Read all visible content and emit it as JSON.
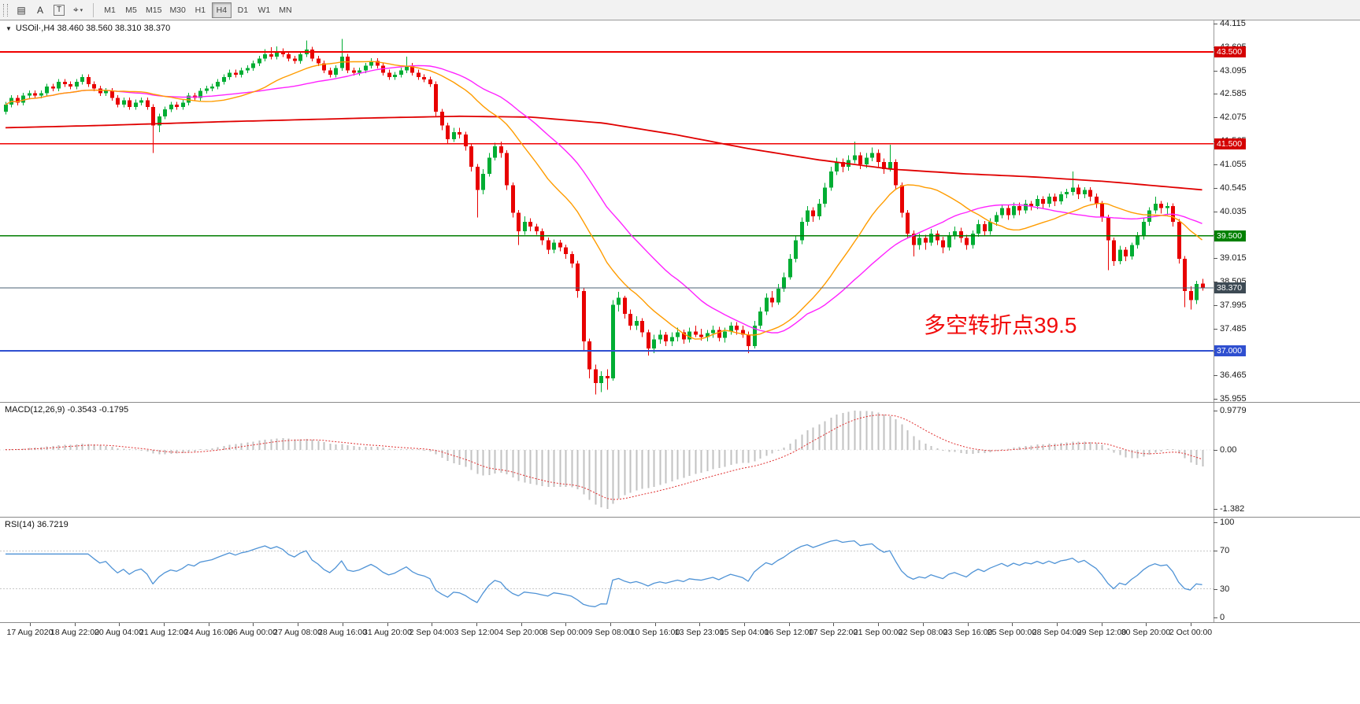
{
  "toolbar": {
    "icons": [
      {
        "name": "charts-list-icon",
        "glyph": "▤",
        "boxed": false
      },
      {
        "name": "cursor-tool-icon",
        "glyph": "A",
        "boxed": false
      },
      {
        "name": "text-tool-icon",
        "glyph": "T",
        "boxed": true
      },
      {
        "name": "crosshair-tool-icon",
        "glyph": "⌖",
        "boxed": false,
        "caret": true
      }
    ],
    "timeframes": [
      {
        "label": "M1",
        "active": false
      },
      {
        "label": "M5",
        "active": false
      },
      {
        "label": "M15",
        "active": false
      },
      {
        "label": "M30",
        "active": false
      },
      {
        "label": "H1",
        "active": false
      },
      {
        "label": "H4",
        "active": true
      },
      {
        "label": "D1",
        "active": false
      },
      {
        "label": "W1",
        "active": false
      },
      {
        "label": "MN",
        "active": false
      }
    ]
  },
  "chart": {
    "title": "USOil·,H4 38.460 38.560 38.310 38.370",
    "annotation": "多空转折点39.5",
    "up_color": "#00ad33",
    "down_color": "#e80000",
    "ma_fast_color": "#ff9c00",
    "ma_mid_color": "#ff22ff",
    "ma_slow_color": "#e00000",
    "ma_fast_period": 20,
    "ma_mid_period": 34,
    "price_axis": {
      "max": 44.115,
      "min": 35.955,
      "labels": [
        "44.115",
        "43.605",
        "43.095",
        "42.585",
        "42.075",
        "41.565",
        "41.055",
        "40.545",
        "40.035",
        "39.525",
        "39.015",
        "38.505",
        "37.995",
        "37.485",
        "36.975",
        "36.465",
        "35.955"
      ]
    },
    "hlines": [
      {
        "price": 43.5,
        "color": "#f00000",
        "width": 1.6,
        "label": "43.500",
        "tag": "#d40000"
      },
      {
        "price": 41.5,
        "color": "#f00000",
        "width": 1.6,
        "label": "41.500",
        "tag": "#d40000"
      },
      {
        "price": 39.5,
        "color": "#007d00",
        "width": 1.6,
        "label": "39.500",
        "tag": "#008000"
      },
      {
        "price": 37.0,
        "color": "#2f4fd0",
        "width": 1.8,
        "label": "37.000",
        "tag": "#2f4fd0"
      }
    ],
    "price_line": {
      "price": 38.37,
      "color": "#4a6076",
      "label": "38.370",
      "tag": "#3d4a54"
    },
    "slow_ma_points": [
      [
        0,
        41.85
      ],
      [
        0.08,
        41.9
      ],
      [
        0.18,
        41.98
      ],
      [
        0.3,
        42.06
      ],
      [
        0.38,
        42.1
      ],
      [
        0.44,
        42.08
      ],
      [
        0.5,
        41.95
      ],
      [
        0.56,
        41.7
      ],
      [
        0.62,
        41.4
      ],
      [
        0.68,
        41.15
      ],
      [
        0.74,
        40.95
      ],
      [
        0.8,
        40.85
      ],
      [
        0.86,
        40.78
      ],
      [
        0.92,
        40.68
      ],
      [
        1,
        40.5
      ]
    ],
    "candles": [
      [
        42.2,
        42.41,
        42.14,
        42.35
      ],
      [
        42.35,
        42.56,
        42.29,
        42.5
      ],
      [
        42.5,
        42.56,
        42.34,
        42.4
      ],
      [
        42.4,
        42.61,
        42.34,
        42.55
      ],
      [
        42.55,
        42.66,
        42.49,
        42.6
      ],
      [
        42.6,
        42.66,
        42.49,
        42.55
      ],
      [
        42.55,
        42.66,
        42.49,
        42.6
      ],
      [
        42.6,
        42.81,
        42.54,
        42.75
      ],
      [
        42.75,
        42.81,
        42.64,
        42.7
      ],
      [
        42.7,
        42.91,
        42.64,
        42.85
      ],
      [
        42.85,
        42.91,
        42.74,
        42.8
      ],
      [
        42.8,
        42.86,
        42.69,
        42.75
      ],
      [
        42.75,
        42.91,
        42.69,
        42.85
      ],
      [
        42.85,
        43.01,
        42.79,
        42.95
      ],
      [
        42.95,
        43.01,
        42.74,
        42.8
      ],
      [
        42.8,
        42.86,
        42.64,
        42.7
      ],
      [
        42.7,
        42.76,
        42.54,
        42.6
      ],
      [
        42.6,
        42.71,
        42.54,
        42.65
      ],
      [
        42.65,
        42.71,
        42.44,
        42.5
      ],
      [
        42.5,
        42.56,
        42.29,
        42.35
      ],
      [
        42.35,
        42.51,
        42.29,
        42.45
      ],
      [
        42.45,
        42.51,
        42.24,
        42.3
      ],
      [
        42.3,
        42.46,
        42.24,
        42.4
      ],
      [
        42.4,
        42.51,
        42.34,
        42.45
      ],
      [
        42.45,
        42.51,
        42.24,
        42.3
      ],
      [
        42.3,
        42.36,
        41.3,
        41.9
      ],
      [
        41.9,
        42.16,
        41.75,
        42.1
      ],
      [
        42.1,
        42.31,
        42.04,
        42.25
      ],
      [
        42.25,
        42.41,
        42.19,
        42.35
      ],
      [
        42.35,
        42.41,
        42.24,
        42.3
      ],
      [
        42.3,
        42.46,
        42.24,
        42.4
      ],
      [
        42.4,
        42.61,
        42.34,
        42.55
      ],
      [
        42.55,
        42.61,
        42.44,
        42.5
      ],
      [
        42.5,
        42.71,
        42.44,
        42.65
      ],
      [
        42.65,
        42.76,
        42.59,
        42.7
      ],
      [
        42.7,
        42.81,
        42.64,
        42.75
      ],
      [
        42.75,
        42.91,
        42.69,
        42.85
      ],
      [
        42.85,
        43.01,
        42.79,
        42.95
      ],
      [
        42.95,
        43.11,
        42.89,
        43.05
      ],
      [
        43.05,
        43.11,
        42.94,
        43.0
      ],
      [
        43.0,
        43.16,
        42.94,
        43.1
      ],
      [
        43.1,
        43.21,
        43.04,
        43.15
      ],
      [
        43.15,
        43.31,
        43.09,
        43.25
      ],
      [
        43.25,
        43.41,
        43.19,
        43.35
      ],
      [
        43.35,
        43.56,
        43.29,
        43.45
      ],
      [
        43.45,
        43.6,
        43.34,
        43.4
      ],
      [
        43.4,
        43.62,
        43.34,
        43.5
      ],
      [
        43.5,
        43.58,
        43.39,
        43.45
      ],
      [
        43.45,
        43.51,
        43.29,
        43.35
      ],
      [
        43.35,
        43.41,
        43.24,
        43.3
      ],
      [
        43.3,
        43.51,
        43.24,
        43.45
      ],
      [
        43.45,
        43.75,
        43.39,
        43.55
      ],
      [
        43.55,
        43.61,
        43.29,
        43.35
      ],
      [
        43.35,
        43.41,
        43.19,
        43.25
      ],
      [
        43.25,
        43.31,
        43.04,
        43.1
      ],
      [
        43.1,
        43.16,
        42.94,
        43.0
      ],
      [
        43.0,
        43.21,
        42.94,
        43.15
      ],
      [
        43.15,
        43.78,
        43.09,
        43.4
      ],
      [
        43.4,
        43.46,
        43.04,
        43.1
      ],
      [
        43.1,
        43.16,
        42.99,
        43.05
      ],
      [
        43.05,
        43.16,
        42.99,
        43.1
      ],
      [
        43.1,
        43.26,
        43.04,
        43.2
      ],
      [
        43.2,
        43.36,
        43.14,
        43.3
      ],
      [
        43.3,
        43.36,
        43.14,
        43.2
      ],
      [
        43.2,
        43.26,
        42.99,
        43.05
      ],
      [
        43.05,
        43.11,
        42.89,
        42.95
      ],
      [
        42.95,
        43.06,
        42.89,
        43.0
      ],
      [
        43.0,
        43.16,
        42.94,
        43.1
      ],
      [
        43.1,
        43.4,
        43.04,
        43.2
      ],
      [
        43.2,
        43.26,
        42.99,
        43.05
      ],
      [
        43.05,
        43.11,
        42.89,
        42.95
      ],
      [
        42.95,
        43.01,
        42.84,
        42.9
      ],
      [
        42.9,
        42.96,
        42.74,
        42.8
      ],
      [
        42.8,
        42.86,
        42.1,
        42.2
      ],
      [
        42.2,
        42.26,
        41.8,
        41.9
      ],
      [
        41.9,
        41.96,
        41.5,
        41.6
      ],
      [
        41.6,
        41.85,
        41.54,
        41.75
      ],
      [
        41.75,
        41.85,
        41.62,
        41.7
      ],
      [
        41.7,
        41.76,
        41.35,
        41.45
      ],
      [
        41.45,
        41.51,
        40.9,
        41.0
      ],
      [
        41.0,
        41.06,
        39.9,
        40.5
      ],
      [
        40.5,
        40.95,
        40.4,
        40.85
      ],
      [
        40.85,
        41.3,
        40.79,
        41.2
      ],
      [
        41.2,
        41.52,
        41.14,
        41.45
      ],
      [
        41.45,
        41.55,
        41.2,
        41.3
      ],
      [
        41.3,
        41.36,
        40.5,
        40.6
      ],
      [
        40.6,
        40.66,
        39.9,
        40.0
      ],
      [
        40.0,
        40.06,
        39.3,
        39.6
      ],
      [
        39.6,
        39.92,
        39.52,
        39.8
      ],
      [
        39.8,
        39.88,
        39.6,
        39.7
      ],
      [
        39.7,
        39.76,
        39.52,
        39.6
      ],
      [
        39.6,
        39.66,
        39.3,
        39.4
      ],
      [
        39.4,
        39.46,
        39.1,
        39.2
      ],
      [
        39.2,
        39.42,
        39.12,
        39.35
      ],
      [
        39.35,
        39.41,
        39.16,
        39.25
      ],
      [
        39.25,
        39.31,
        39.0,
        39.1
      ],
      [
        39.1,
        39.16,
        38.8,
        38.9
      ],
      [
        38.9,
        38.96,
        38.15,
        38.3
      ],
      [
        38.3,
        38.36,
        37.0,
        37.2
      ],
      [
        37.2,
        37.26,
        36.4,
        36.6
      ],
      [
        36.6,
        36.7,
        36.05,
        36.3
      ],
      [
        36.3,
        36.55,
        36.1,
        36.45
      ],
      [
        36.45,
        36.6,
        36.15,
        36.4
      ],
      [
        36.4,
        38.1,
        36.35,
        38.0
      ],
      [
        38.0,
        38.28,
        37.85,
        38.15
      ],
      [
        38.15,
        38.2,
        37.7,
        37.8
      ],
      [
        37.8,
        37.9,
        37.45,
        37.55
      ],
      [
        37.55,
        37.75,
        37.45,
        37.65
      ],
      [
        37.65,
        37.71,
        37.3,
        37.4
      ],
      [
        37.4,
        37.46,
        36.9,
        37.05
      ],
      [
        37.05,
        37.35,
        36.95,
        37.25
      ],
      [
        37.25,
        37.45,
        37.15,
        37.35
      ],
      [
        37.35,
        37.41,
        37.1,
        37.2
      ],
      [
        37.2,
        37.4,
        37.1,
        37.3
      ],
      [
        37.3,
        37.5,
        37.2,
        37.4
      ],
      [
        37.4,
        37.46,
        37.15,
        37.25
      ],
      [
        37.25,
        37.5,
        37.18,
        37.42
      ],
      [
        37.42,
        37.55,
        37.3,
        37.35
      ],
      [
        37.35,
        37.48,
        37.22,
        37.3
      ],
      [
        37.3,
        37.45,
        37.2,
        37.38
      ],
      [
        37.38,
        37.55,
        37.28,
        37.45
      ],
      [
        37.45,
        37.52,
        37.2,
        37.28
      ],
      [
        37.28,
        37.5,
        37.18,
        37.42
      ],
      [
        37.42,
        37.62,
        37.35,
        37.55
      ],
      [
        37.55,
        37.62,
        37.35,
        37.45
      ],
      [
        37.45,
        37.55,
        37.28,
        37.35
      ],
      [
        37.35,
        37.42,
        36.95,
        37.1
      ],
      [
        37.1,
        37.65,
        37.05,
        37.55
      ],
      [
        37.55,
        37.95,
        37.48,
        37.85
      ],
      [
        37.85,
        38.25,
        37.78,
        38.15
      ],
      [
        38.15,
        38.3,
        37.95,
        38.05
      ],
      [
        38.05,
        38.45,
        38.0,
        38.35
      ],
      [
        38.35,
        38.7,
        38.28,
        38.6
      ],
      [
        38.6,
        39.1,
        38.55,
        39.0
      ],
      [
        39.0,
        39.5,
        38.92,
        39.4
      ],
      [
        39.4,
        39.9,
        39.32,
        39.8
      ],
      [
        39.8,
        40.15,
        39.72,
        40.05
      ],
      [
        40.05,
        40.12,
        39.8,
        39.92
      ],
      [
        39.92,
        40.3,
        39.85,
        40.2
      ],
      [
        40.2,
        40.65,
        40.12,
        40.55
      ],
      [
        40.55,
        41.0,
        40.48,
        40.9
      ],
      [
        40.9,
        41.2,
        40.82,
        41.1
      ],
      [
        41.1,
        41.18,
        40.88,
        41.0
      ],
      [
        41.0,
        41.25,
        40.92,
        41.15
      ],
      [
        41.15,
        41.55,
        41.08,
        41.25
      ],
      [
        41.25,
        41.32,
        40.95,
        41.05
      ],
      [
        41.05,
        41.3,
        40.98,
        41.2
      ],
      [
        41.2,
        41.42,
        41.12,
        41.3
      ],
      [
        41.3,
        41.38,
        41.0,
        41.1
      ],
      [
        41.1,
        41.18,
        40.85,
        40.95
      ],
      [
        40.95,
        41.48,
        40.9,
        41.1
      ],
      [
        41.1,
        41.16,
        40.5,
        40.6
      ],
      [
        40.6,
        40.66,
        39.9,
        40.0
      ],
      [
        40.0,
        40.06,
        39.45,
        39.55
      ],
      [
        39.55,
        39.62,
        39.05,
        39.3
      ],
      [
        39.3,
        39.55,
        39.2,
        39.45
      ],
      [
        39.45,
        39.52,
        39.2,
        39.35
      ],
      [
        39.35,
        39.65,
        39.28,
        39.55
      ],
      [
        39.55,
        39.62,
        39.3,
        39.4
      ],
      [
        39.4,
        39.48,
        39.12,
        39.25
      ],
      [
        39.25,
        39.58,
        39.18,
        39.5
      ],
      [
        39.5,
        39.7,
        39.42,
        39.6
      ],
      [
        39.6,
        39.68,
        39.35,
        39.45
      ],
      [
        39.45,
        39.52,
        39.2,
        39.3
      ],
      [
        39.3,
        39.62,
        39.22,
        39.55
      ],
      [
        39.55,
        39.85,
        39.48,
        39.75
      ],
      [
        39.75,
        39.82,
        39.5,
        39.6
      ],
      [
        39.6,
        39.88,
        39.52,
        39.8
      ],
      [
        39.8,
        40.02,
        39.72,
        39.95
      ],
      [
        39.95,
        40.18,
        39.88,
        40.1
      ],
      [
        40.1,
        40.16,
        39.85,
        39.95
      ],
      [
        39.95,
        40.22,
        39.88,
        40.15
      ],
      [
        40.15,
        40.22,
        39.95,
        40.05
      ],
      [
        40.05,
        40.28,
        39.98,
        40.2
      ],
      [
        40.2,
        40.26,
        40.05,
        40.15
      ],
      [
        40.15,
        40.38,
        40.08,
        40.3
      ],
      [
        40.3,
        40.36,
        40.1,
        40.2
      ],
      [
        40.2,
        40.42,
        40.12,
        40.35
      ],
      [
        40.35,
        40.42,
        40.15,
        40.25
      ],
      [
        40.25,
        40.46,
        40.18,
        40.4
      ],
      [
        40.4,
        40.52,
        40.32,
        40.45
      ],
      [
        40.45,
        40.9,
        40.38,
        40.55
      ],
      [
        40.55,
        40.62,
        40.3,
        40.4
      ],
      [
        40.4,
        40.56,
        40.32,
        40.5
      ],
      [
        40.5,
        40.56,
        40.25,
        40.35
      ],
      [
        40.35,
        40.42,
        40.1,
        40.2
      ],
      [
        40.2,
        40.26,
        39.8,
        39.9
      ],
      [
        39.9,
        39.96,
        38.75,
        39.4
      ],
      [
        39.4,
        39.46,
        38.85,
        38.95
      ],
      [
        38.95,
        39.28,
        38.88,
        39.2
      ],
      [
        39.2,
        39.26,
        38.95,
        39.05
      ],
      [
        39.05,
        39.35,
        38.98,
        39.3
      ],
      [
        39.3,
        39.58,
        39.22,
        39.5
      ],
      [
        39.5,
        39.88,
        39.42,
        39.8
      ],
      [
        39.8,
        40.12,
        39.72,
        40.05
      ],
      [
        40.05,
        40.35,
        39.98,
        40.2
      ],
      [
        40.2,
        40.26,
        39.98,
        40.1
      ],
      [
        40.1,
        40.22,
        39.95,
        40.15
      ],
      [
        40.15,
        40.21,
        39.7,
        39.8
      ],
      [
        39.8,
        39.86,
        38.9,
        39.0
      ],
      [
        39.0,
        39.06,
        37.95,
        38.3
      ],
      [
        38.3,
        38.4,
        37.9,
        38.1
      ],
      [
        38.1,
        38.52,
        38.02,
        38.45
      ],
      [
        38.46,
        38.56,
        38.31,
        38.37
      ]
    ]
  },
  "macd": {
    "label": "MACD(12,26,9) -0.3543 -0.1795",
    "fast": 12,
    "slow": 26,
    "signal": 9,
    "axis_labels": [
      "0.9779",
      "0.00",
      "-1.382"
    ],
    "hist_color": "#c2c2c2",
    "signal_color": "#e03030"
  },
  "rsi": {
    "label": "RSI(14) 36.7219",
    "period": 14,
    "levels": [
      70,
      30
    ],
    "axis": [
      {
        "label": "100",
        "value": 100
      },
      {
        "label": "70",
        "value": 70
      },
      {
        "label": "30",
        "value": 30
      },
      {
        "label": "0",
        "value": 0
      }
    ],
    "line_color": "#4f93d6"
  },
  "time_axis": {
    "labels": [
      "17 Aug 2020",
      "18 Aug 22:00",
      "20 Aug 04:00",
      "21 Aug 12:00",
      "24 Aug 16:00",
      "26 Aug 00:00",
      "27 Aug 08:00",
      "28 Aug 16:00",
      "31 Aug 20:00",
      "2 Sep 04:00",
      "3 Sep 12:00",
      "4 Sep 20:00",
      "8 Sep 00:00",
      "9 Sep 08:00",
      "10 Sep 16:00",
      "13 Sep 23:00",
      "15 Sep 04:00",
      "16 Sep 12:00",
      "17 Sep 22:00",
      "21 Sep 00:00",
      "22 Sep 08:00",
      "23 Sep 16:00",
      "25 Sep 00:00",
      "28 Sep 04:00",
      "29 Sep 12:00",
      "30 Sep 20:00",
      "2 Oct 00:00"
    ]
  }
}
